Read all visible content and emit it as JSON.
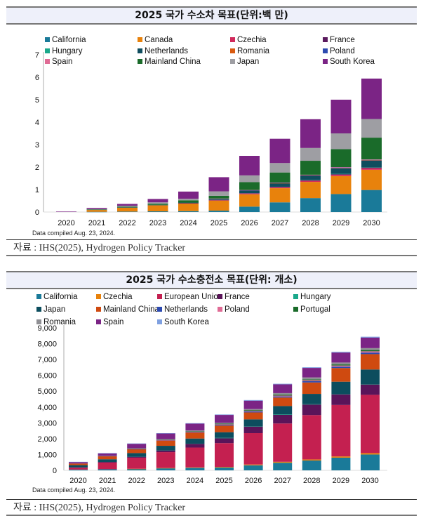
{
  "charts": [
    {
      "header_title": "2025 국가 수소차 목표(단위:백 만)",
      "note": "Data compiled Aug. 23, 2024.",
      "source": "자료 : IHS(2025), Hydrogen Policy Tracker"
    },
    {
      "header_title": "2025 국가 수소충전소 목표(단위: 개소)",
      "note": "Data compiled Aug. 23, 2024.",
      "source": "자료 : IHS(2025), Hydrogen Policy Tracker"
    }
  ],
  "chart_data": [
    {
      "type": "bar",
      "stacked": true,
      "title": "2025 국가 수소차 목표(단위:백 만)",
      "xlabel": "",
      "ylabel": "",
      "ylim": [
        0,
        7
      ],
      "yticks": [
        "0",
        "1",
        "2",
        "3",
        "4",
        "5",
        "6",
        "7"
      ],
      "grid": false,
      "legend_position": "top",
      "categories": [
        "2020",
        "2021",
        "2022",
        "2023",
        "2024",
        "2025",
        "2026",
        "2027",
        "2028",
        "2029",
        "2030"
      ],
      "series": [
        {
          "name": "California",
          "color": "#1a7a99",
          "values": [
            0.0,
            0.01,
            0.02,
            0.03,
            0.04,
            0.06,
            0.24,
            0.43,
            0.62,
            0.8,
            0.98
          ]
        },
        {
          "name": "Canada",
          "color": "#e8820c",
          "values": [
            0.0,
            0.08,
            0.18,
            0.27,
            0.34,
            0.45,
            0.55,
            0.63,
            0.72,
            0.8,
            0.9
          ]
        },
        {
          "name": "Czechia",
          "color": "#d12a5c",
          "values": [
            0.0,
            0.0,
            0.0,
            0.0,
            0.01,
            0.02,
            0.03,
            0.04,
            0.05,
            0.06,
            0.07
          ]
        },
        {
          "name": "France",
          "color": "#5b1a5e",
          "values": [
            0.0,
            0.0,
            0.0,
            0.0,
            0.0,
            0.01,
            0.02,
            0.02,
            0.03,
            0.03,
            0.04
          ]
        },
        {
          "name": "Hungary",
          "color": "#1aa88a",
          "values": [
            0.0,
            0.0,
            0.0,
            0.0,
            0.0,
            0.0,
            0.0,
            0.0,
            0.01,
            0.01,
            0.01
          ]
        },
        {
          "name": "Netherlands",
          "color": "#0f4d5e",
          "values": [
            0.0,
            0.0,
            0.01,
            0.02,
            0.03,
            0.05,
            0.12,
            0.16,
            0.2,
            0.25,
            0.29
          ]
        },
        {
          "name": "Romania",
          "color": "#d95b10",
          "values": [
            0.0,
            0.0,
            0.0,
            0.0,
            0.0,
            0.0,
            0.0,
            0.01,
            0.01,
            0.01,
            0.01
          ]
        },
        {
          "name": "Poland",
          "color": "#2c4ab0",
          "values": [
            0.0,
            0.0,
            0.0,
            0.0,
            0.0,
            0.0,
            0.01,
            0.01,
            0.01,
            0.02,
            0.02
          ]
        },
        {
          "name": "Spain",
          "color": "#e06b95",
          "values": [
            0.0,
            0.0,
            0.0,
            0.0,
            0.0,
            0.01,
            0.01,
            0.01,
            0.01,
            0.02,
            0.02
          ]
        },
        {
          "name": "Mainland China",
          "color": "#1a6b2a",
          "values": [
            0.0,
            0.02,
            0.03,
            0.05,
            0.1,
            0.12,
            0.35,
            0.45,
            0.62,
            0.8,
            0.97
          ]
        },
        {
          "name": "Japan",
          "color": "#9e9ea3",
          "values": [
            0.0,
            0.02,
            0.04,
            0.06,
            0.07,
            0.2,
            0.3,
            0.42,
            0.57,
            0.7,
            0.83
          ]
        },
        {
          "name": "South Korea",
          "color": "#7b2485",
          "values": [
            0.02,
            0.05,
            0.08,
            0.15,
            0.32,
            0.63,
            0.87,
            1.08,
            1.28,
            1.5,
            1.8
          ]
        }
      ]
    },
    {
      "type": "bar",
      "stacked": true,
      "title": "2025 국가 수소충전소 목표(단위: 개소)",
      "xlabel": "",
      "ylabel": "",
      "ylim": [
        0,
        9000
      ],
      "yticks": [
        "0",
        "1,000",
        "2,000",
        "3,000",
        "4,000",
        "5,000",
        "6,000",
        "7,000",
        "8,000",
        "9,000"
      ],
      "grid": false,
      "legend_position": "top",
      "categories": [
        "2020",
        "2021",
        "2022",
        "2023",
        "2024",
        "2025",
        "2026",
        "2027",
        "2028",
        "2029",
        "2030"
      ],
      "series": [
        {
          "name": "California",
          "color": "#1a7a99",
          "values": [
            50,
            70,
            90,
            130,
            160,
            180,
            320,
            480,
            620,
            800,
            1000
          ]
        },
        {
          "name": "Czechia",
          "color": "#e8820c",
          "values": [
            0,
            0,
            10,
            20,
            30,
            40,
            50,
            60,
            70,
            80,
            90
          ]
        },
        {
          "name": "European Union",
          "color": "#c42050",
          "values": [
            120,
            420,
            700,
            1000,
            1250,
            1500,
            1980,
            2420,
            2800,
            3250,
            3680
          ]
        },
        {
          "name": "France",
          "color": "#5a1459",
          "values": [
            20,
            40,
            50,
            100,
            230,
            320,
            430,
            560,
            680,
            690,
            670
          ]
        },
        {
          "name": "Hungary",
          "color": "#1aa88a",
          "values": [
            0,
            0,
            0,
            0,
            0,
            10,
            10,
            10,
            10,
            10,
            10
          ]
        },
        {
          "name": "Japan",
          "color": "#0c4d5e",
          "values": [
            140,
            170,
            240,
            300,
            340,
            360,
            430,
            530,
            650,
            770,
            920
          ]
        },
        {
          "name": "Mainland China",
          "color": "#cf4a10",
          "values": [
            100,
            200,
            240,
            330,
            380,
            420,
            440,
            540,
            720,
            860,
            970
          ]
        },
        {
          "name": "Netherlands",
          "color": "#2c4ab0",
          "values": [
            0,
            10,
            20,
            30,
            40,
            50,
            60,
            70,
            80,
            90,
            100
          ]
        },
        {
          "name": "Poland",
          "color": "#e06b95",
          "values": [
            0,
            0,
            10,
            10,
            20,
            30,
            40,
            50,
            60,
            70,
            80
          ]
        },
        {
          "name": "Portugal",
          "color": "#1a6b2a",
          "values": [
            0,
            0,
            10,
            20,
            30,
            40,
            50,
            60,
            60,
            70,
            80
          ]
        },
        {
          "name": "Romania",
          "color": "#8f8f94",
          "values": [
            0,
            10,
            20,
            30,
            40,
            50,
            60,
            100,
            120,
            120,
            120
          ]
        },
        {
          "name": "Spain",
          "color": "#7b2485",
          "values": [
            100,
            160,
            290,
            360,
            430,
            500,
            530,
            550,
            600,
            630,
            660
          ]
        },
        {
          "name": "South Korea",
          "color": "#7fa0e0",
          "values": [
            10,
            10,
            20,
            20,
            30,
            30,
            40,
            40,
            40,
            50,
            60
          ]
        }
      ]
    }
  ]
}
